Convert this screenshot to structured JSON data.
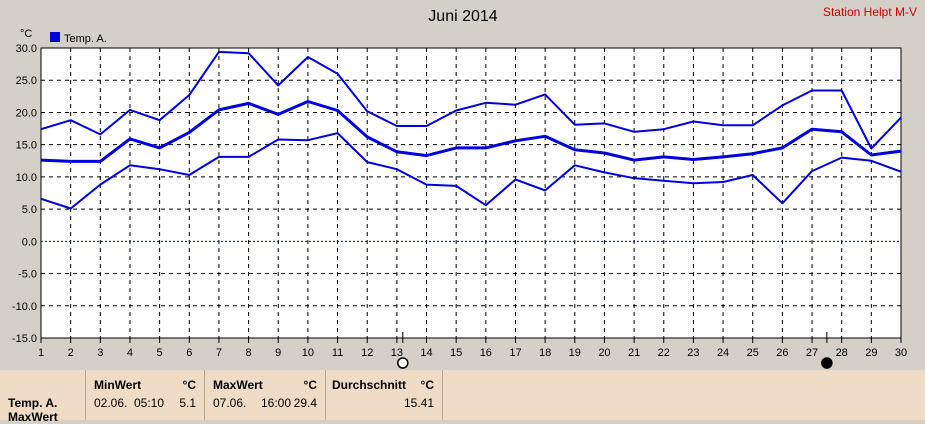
{
  "chart_data": {
    "type": "line",
    "title": "Juni 2014",
    "station": "Station Helpt M-V",
    "unit": "°C",
    "legend": "Temp. A.",
    "x": [
      1,
      2,
      3,
      4,
      5,
      6,
      7,
      8,
      9,
      10,
      11,
      12,
      13,
      14,
      15,
      16,
      17,
      18,
      19,
      20,
      21,
      22,
      23,
      24,
      25,
      26,
      27,
      28,
      29,
      30
    ],
    "ylim": [
      -15,
      30
    ],
    "yticks": [
      "30.0",
      "25.0",
      "20.0",
      "15.0",
      "10.0",
      "5.0",
      "0.0",
      "-5.0",
      "-10.0",
      "-15.0"
    ],
    "grid": true,
    "series": [
      {
        "role": "max",
        "values": [
          17.4,
          18.8,
          16.6,
          20.4,
          18.8,
          22.7,
          29.4,
          29.2,
          24.2,
          28.6,
          26.0,
          20.2,
          17.9,
          17.9,
          20.3,
          21.5,
          21.2,
          22.8,
          18.1,
          18.3,
          17.0,
          17.4,
          18.6,
          18.0,
          18.0,
          21.1,
          23.4,
          23.4,
          14.4,
          19.2
        ]
      },
      {
        "role": "avg",
        "values": [
          12.6,
          12.4,
          12.4,
          15.9,
          14.5,
          16.9,
          20.4,
          21.4,
          19.7,
          21.7,
          20.3,
          16.2,
          13.9,
          13.3,
          14.5,
          14.5,
          15.6,
          16.3,
          14.2,
          13.7,
          12.6,
          13.1,
          12.7,
          13.1,
          13.6,
          14.5,
          17.4,
          17.0,
          13.4,
          14.0
        ]
      },
      {
        "role": "min",
        "values": [
          6.6,
          5.1,
          8.8,
          11.8,
          11.2,
          10.3,
          13.1,
          13.1,
          15.8,
          15.7,
          16.8,
          12.3,
          11.2,
          8.8,
          8.6,
          5.6,
          9.6,
          7.9,
          11.8,
          10.7,
          9.8,
          9.4,
          9.0,
          9.2,
          10.3,
          5.9,
          10.9,
          13.0,
          12.5,
          10.8
        ]
      }
    ],
    "markers": [
      {
        "type": "open-circle",
        "x": 13.2
      },
      {
        "type": "filled-circle",
        "x": 27.5
      }
    ]
  },
  "stats": {
    "row_label": "Temp. A.",
    "row_label2": "MaxWert",
    "min": {
      "label": "MinWert",
      "unit": "°C",
      "date": "02.06.",
      "time": "05:10",
      "value": "5.1"
    },
    "max": {
      "label": "MaxWert",
      "unit": "°C",
      "date": "07.06.",
      "time": "16:00",
      "value": "29.4"
    },
    "avg": {
      "label": "Durchschnitt",
      "unit": "°C",
      "value": "15.41"
    }
  },
  "colors": {
    "line": "#0000dd",
    "zero": "#0000aa",
    "plot_bg": "#ffffff",
    "station": "#cc0000"
  }
}
